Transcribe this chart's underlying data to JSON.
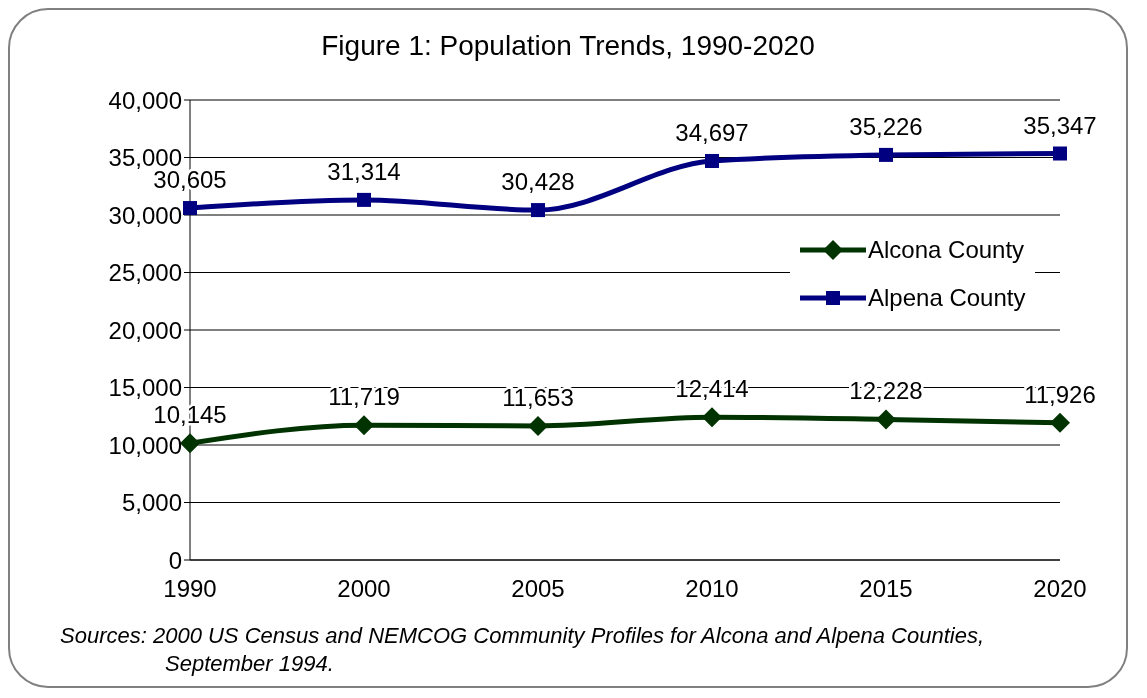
{
  "chart_data": {
    "type": "line",
    "title": "Figure 1: Population Trends, 1990-2020",
    "categories": [
      "1990",
      "2000",
      "2005",
      "2010",
      "2015",
      "2020"
    ],
    "series": [
      {
        "name": "Alcona County",
        "color": "#003300",
        "marker": "diamond",
        "values": [
          10145,
          11719,
          11653,
          12414,
          12228,
          11926
        ],
        "value_labels": [
          "10,145",
          "11,719",
          "11,653",
          "12,414",
          "12,228",
          "11,926"
        ]
      },
      {
        "name": "Alpena County",
        "color": "#000080",
        "marker": "square",
        "values": [
          30605,
          31314,
          30428,
          34697,
          35226,
          35347
        ],
        "value_labels": [
          "30,605",
          "31,314",
          "30,428",
          "34,697",
          "35,226",
          "35,347"
        ]
      }
    ],
    "ylim": [
      0,
      40000
    ],
    "yticks": [
      0,
      {
        "value": 5000,
        "label": "5,000"
      },
      {
        "value": 10000,
        "label": "10,000"
      },
      {
        "value": 15000,
        "label": "15,000"
      },
      {
        "value": 20000,
        "label": "20,000"
      },
      {
        "value": 25000,
        "label": "25,000"
      },
      {
        "value": 30000,
        "label": "30,000"
      },
      {
        "value": 35000,
        "label": "35,000"
      },
      {
        "value": 40000,
        "label": "40,000"
      }
    ],
    "grid": "y",
    "legend": "right",
    "annotations": [
      "Sources:  2000 US Census and NEMCOG Community Profiles for Alcona and Alpena Counties, September 1994."
    ]
  }
}
